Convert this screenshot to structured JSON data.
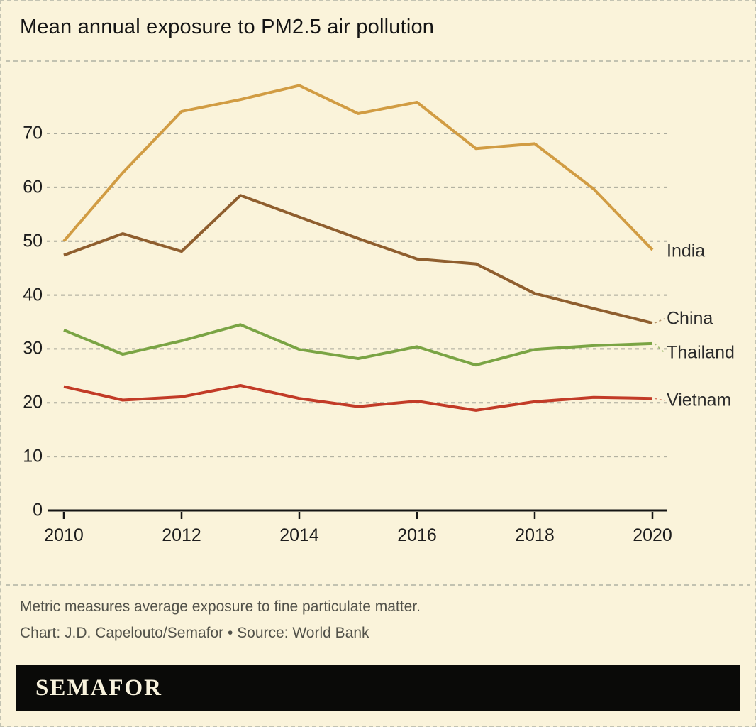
{
  "title": "Mean annual exposure to PM2.5 air pollution",
  "chart_data": {
    "type": "line",
    "x": [
      2010,
      2011,
      2012,
      2013,
      2014,
      2015,
      2016,
      2017,
      2018,
      2019,
      2020
    ],
    "series": [
      {
        "name": "India",
        "color": "#d19c43",
        "values": [
          50.0,
          62.7,
          74.1,
          76.3,
          78.9,
          73.7,
          75.8,
          67.2,
          68.1,
          59.7,
          48.4
        ]
      },
      {
        "name": "China",
        "color": "#8f5e2e",
        "values": [
          47.4,
          51.4,
          48.1,
          58.5,
          54.5,
          50.5,
          46.7,
          45.8,
          40.3,
          37.5,
          34.8
        ]
      },
      {
        "name": "Thailand",
        "color": "#7aa444",
        "values": [
          33.5,
          29.0,
          31.5,
          34.5,
          29.9,
          28.2,
          30.4,
          27.0,
          29.9,
          30.6,
          31.0
        ]
      },
      {
        "name": "Vietnam",
        "color": "#c23b27",
        "values": [
          23.0,
          20.5,
          21.1,
          23.2,
          20.8,
          19.3,
          20.3,
          18.6,
          20.2,
          21.0,
          20.8
        ]
      }
    ],
    "yticks": [
      0,
      10,
      20,
      30,
      40,
      50,
      60,
      70
    ],
    "xticks": [
      2010,
      2012,
      2014,
      2016,
      2018,
      2020
    ],
    "ylim": [
      0,
      80
    ],
    "grid": "horizontal-dashed",
    "legend_position": "right-end-labels",
    "colors": {
      "background": "#faf3da",
      "gridline": "#a9a99b",
      "axis": "#141414",
      "separator": "#c2c2b1"
    }
  },
  "footer": {
    "note": "Metric measures average exposure to fine particulate matter.",
    "credit": "Chart: J.D. Capelouto/Semafor • Source: World Bank"
  },
  "logo": {
    "text": "SEMAFOR"
  }
}
